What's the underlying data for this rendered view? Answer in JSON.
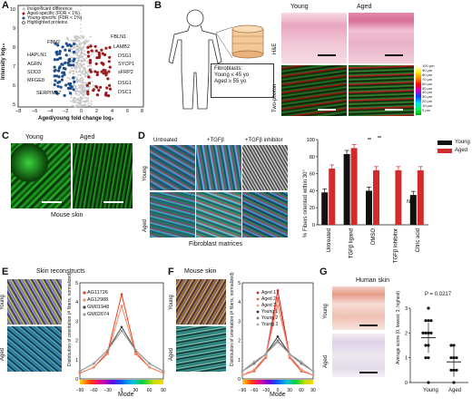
{
  "panels": [
    "A",
    "B",
    "C",
    "D",
    "E",
    "F",
    "G"
  ],
  "panelA": {
    "legend": [
      "Insignificant difference",
      "Aged-specific (FDR < 1%)",
      "Young-specific (FDR < 1%)",
      "Highlighted proteins"
    ],
    "left_proteins": [
      "FBN2",
      "HAPLN1",
      "AGRN",
      "SOD3",
      "MFGE8",
      "SERPINB7"
    ],
    "right_proteins": [
      "FBLN1",
      "LAMB2",
      "DSG1",
      "SYCP1",
      "sFRP2",
      "DSG1",
      "DSC1"
    ],
    "xlabel": "Aged/young fold change log₂",
    "ylabel": "Intensity log₁₀",
    "xticks": [
      "−8",
      "−6",
      "−4",
      "−2",
      "0",
      "2",
      "4",
      "6",
      "8"
    ],
    "yticks": [
      "5",
      "6",
      "7",
      "8",
      "9",
      "10"
    ]
  },
  "panelB": {
    "col_young": "Young",
    "col_aged": "Aged",
    "row_he": "H&E",
    "row_tp": "Two-photon",
    "box_title": "Fibroblasts:",
    "box_young": "Young ≤ 45 yo",
    "box_aged": "Aged ≥ 55 yo",
    "scale_ticks": [
      "100 μm",
      "90 μm",
      "80 μm",
      "70 μm",
      "60 μm",
      "50 μm",
      "40 μm",
      "30 μm",
      "20 μm",
      "10 μm",
      "0 μm"
    ]
  },
  "panelC": {
    "young": "Young",
    "aged": "Aged",
    "caption": "Mouse skin"
  },
  "panelD": {
    "cols": [
      "Untreated",
      "+TGFβ",
      "+TGFβ inhibitor"
    ],
    "rows": [
      "Young",
      "Aged"
    ],
    "caption": "Fibroblast matrices",
    "legend_young": "Young",
    "legend_aged": "Aged",
    "ylabel": "% Fibers oriented within 30°",
    "star": "**",
    "na": "N/A"
  },
  "panelE": {
    "title": "Skin reconstructs",
    "rows": [
      "Young",
      "Aged"
    ],
    "series_names": [
      "AG11726",
      "AG12988",
      "GM01948",
      "GM02674"
    ],
    "ylabel": "Distribution of orientation (# fibers, normalized)",
    "xlabel": "Mode",
    "xticks": [
      "−90",
      "−60",
      "−30",
      "0",
      "30",
      "60",
      "90"
    ]
  },
  "panelF": {
    "title": "Mouse skin",
    "rows": [
      "Young",
      "Aged"
    ],
    "series_names": [
      "Aged 1",
      "Aged 2",
      "Aged 3",
      "Young 1",
      "Young 2",
      "Young 3"
    ],
    "ylabel": "Distribution of orientation (# fibers, normalized)",
    "xlabel": "Mode",
    "xticks": [
      "−90",
      "−60",
      "−30",
      "0",
      "30",
      "60",
      "90"
    ]
  },
  "panelG": {
    "title": "Human skin",
    "rows": [
      "Young",
      "Aged"
    ],
    "pvalue": "P = 0.0217",
    "ylabel": "Average score (0, lowest; 3, highest)",
    "yticks": [
      "0",
      "1",
      "2",
      "3"
    ],
    "xticks": [
      "Young",
      "Aged"
    ]
  },
  "chart_data": [
    {
      "type": "bar",
      "categories": [
        "Untreated",
        "TGFβ ligand",
        "DMSO",
        "TGFβ inhibitor",
        "Citric acid"
      ],
      "series": [
        {
          "name": "Young",
          "values": [
            38,
            83,
            40,
            null,
            35
          ]
        },
        {
          "name": "Aged",
          "values": [
            66,
            90,
            64,
            64,
            64
          ]
        }
      ],
      "ylabel": "% Fibers oriented within 30°",
      "ylim": [
        0,
        100
      ],
      "yticks": [
        "0",
        "20",
        "40",
        "60",
        "80",
        "100"
      ],
      "colors": {
        "Young": "#111111",
        "Aged": "#d22b2b"
      }
    },
    {
      "type": "line",
      "x": [
        -90,
        -60,
        -30,
        0,
        30,
        60,
        90
      ],
      "series": [
        {
          "name": "AG11726",
          "values": [
            0.3,
            0.6,
            1.4,
            4.4,
            1.4,
            0.6,
            0.3
          ]
        },
        {
          "name": "AG12988",
          "values": [
            0.3,
            0.6,
            1.3,
            3.8,
            1.3,
            0.6,
            0.3
          ]
        },
        {
          "name": "GM01948",
          "values": [
            0.4,
            0.8,
            1.5,
            2.7,
            1.5,
            0.8,
            0.4
          ]
        },
        {
          "name": "GM02674",
          "values": [
            0.4,
            0.8,
            1.5,
            2.5,
            1.5,
            0.8,
            0.4
          ]
        }
      ],
      "ylabel": "Distribution of orientation (# fibers, normalized)",
      "xlabel": "Mode",
      "ylim": [
        0,
        5
      ]
    },
    {
      "type": "line",
      "x": [
        -90,
        -60,
        -30,
        0,
        30,
        60,
        90
      ],
      "series": [
        {
          "name": "Aged 1",
          "values": [
            0.2,
            0.4,
            1.2,
            4.6,
            1.2,
            0.4,
            0.2
          ]
        },
        {
          "name": "Aged 2",
          "values": [
            0.2,
            0.4,
            1.1,
            4.2,
            1.1,
            0.4,
            0.2
          ]
        },
        {
          "name": "Aged 3",
          "values": [
            0.2,
            0.5,
            1.2,
            3.8,
            1.2,
            0.5,
            0.2
          ]
        },
        {
          "name": "Young 1",
          "values": [
            0.4,
            0.8,
            1.3,
            2.2,
            1.3,
            0.8,
            0.4
          ]
        },
        {
          "name": "Young 2",
          "values": [
            0.4,
            0.8,
            1.3,
            2.0,
            1.3,
            0.8,
            0.4
          ]
        },
        {
          "name": "Young 3",
          "values": [
            0.4,
            0.9,
            1.3,
            1.9,
            1.3,
            0.9,
            0.4
          ]
        }
      ],
      "ylabel": "Distribution of orientation (# fibers, normalized)",
      "xlabel": "Mode",
      "ylim": [
        0,
        5
      ]
    },
    {
      "type": "scatter",
      "categories": [
        "Young",
        "Aged"
      ],
      "series": [
        {
          "name": "Young",
          "values": [
            0,
            1,
            1,
            1.5,
            1.5,
            2,
            2,
            2,
            2,
            2.5,
            2.5,
            2.5,
            3
          ]
        },
        {
          "name": "Aged",
          "values": [
            0,
            0.5,
            0.5,
            0.5,
            1,
            1,
            1,
            1.5,
            1.5
          ]
        }
      ],
      "ylabel": "Average score (0, lowest; 3, highest)",
      "ylim": [
        0,
        3
      ]
    }
  ]
}
